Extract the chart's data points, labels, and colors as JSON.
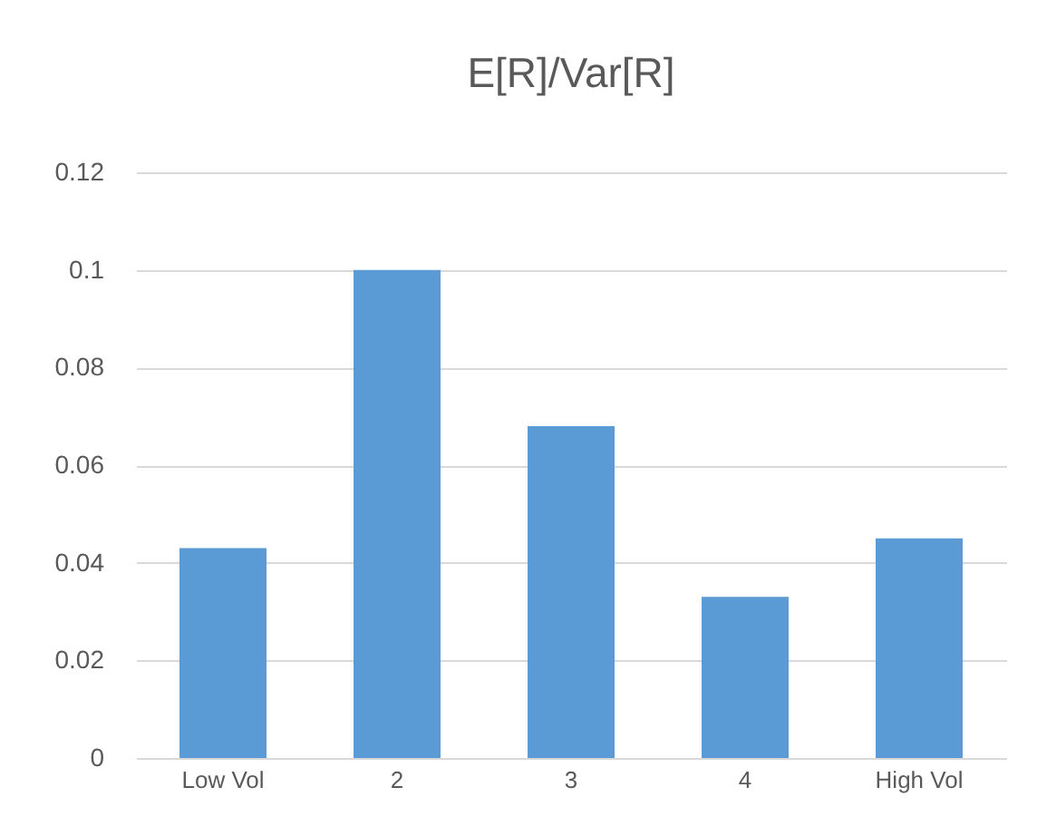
{
  "chart_data": {
    "type": "bar",
    "title": "E[R]/Var[R]",
    "categories": [
      "Low Vol",
      "2",
      "3",
      "4",
      "High Vol"
    ],
    "values": [
      0.043,
      0.1,
      0.068,
      0.033,
      0.045
    ],
    "color": "#5b9bd5",
    "ylim": [
      0,
      0.12
    ],
    "yticks": [
      0,
      0.02,
      0.04,
      0.06,
      0.08,
      0.1,
      0.12
    ],
    "grid": true
  }
}
